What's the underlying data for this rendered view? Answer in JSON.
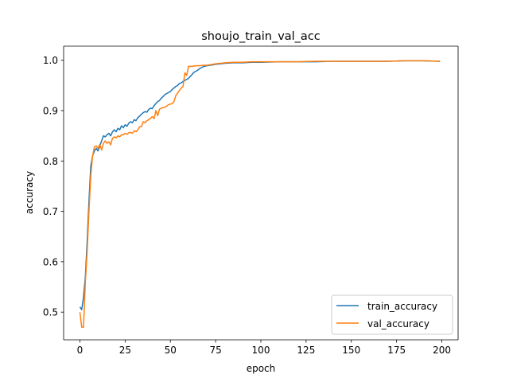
{
  "chart_data": {
    "type": "line",
    "title": "shoujo_train_val_acc",
    "xlabel": "epoch",
    "ylabel": "accuracy",
    "xlim": [
      -9,
      209
    ],
    "ylim": [
      0.445,
      1.028
    ],
    "xticks": [
      0,
      25,
      50,
      75,
      100,
      125,
      150,
      175,
      200
    ],
    "yticks": [
      0.5,
      0.6,
      0.7,
      0.8,
      0.9,
      1.0
    ],
    "ytick_labels": [
      "0.5",
      "0.6",
      "0.7",
      "0.8",
      "0.9",
      "1.0"
    ],
    "grid": false,
    "legend_position": "lower-right",
    "series": [
      {
        "name": "train_accuracy",
        "color": "#1f77b4",
        "points": [
          [
            0,
            0.51
          ],
          [
            1,
            0.505
          ],
          [
            2,
            0.53
          ],
          [
            3,
            0.57
          ],
          [
            4,
            0.64
          ],
          [
            5,
            0.72
          ],
          [
            6,
            0.79
          ],
          [
            7,
            0.81
          ],
          [
            8,
            0.82
          ],
          [
            9,
            0.825
          ],
          [
            10,
            0.82
          ],
          [
            11,
            0.83
          ],
          [
            12,
            0.84
          ],
          [
            13,
            0.85
          ],
          [
            14,
            0.848
          ],
          [
            15,
            0.852
          ],
          [
            16,
            0.855
          ],
          [
            17,
            0.85
          ],
          [
            18,
            0.858
          ],
          [
            19,
            0.862
          ],
          [
            20,
            0.858
          ],
          [
            21,
            0.865
          ],
          [
            22,
            0.862
          ],
          [
            23,
            0.87
          ],
          [
            24,
            0.866
          ],
          [
            25,
            0.872
          ],
          [
            26,
            0.869
          ],
          [
            27,
            0.875
          ],
          [
            28,
            0.878
          ],
          [
            29,
            0.876
          ],
          [
            30,
            0.882
          ],
          [
            31,
            0.88
          ],
          [
            32,
            0.886
          ],
          [
            33,
            0.889
          ],
          [
            34,
            0.893
          ],
          [
            35,
            0.896
          ],
          [
            36,
            0.898
          ],
          [
            37,
            0.897
          ],
          [
            38,
            0.902
          ],
          [
            39,
            0.905
          ],
          [
            40,
            0.904
          ],
          [
            41,
            0.91
          ],
          [
            42,
            0.914
          ],
          [
            43,
            0.918
          ],
          [
            44,
            0.92
          ],
          [
            45,
            0.925
          ],
          [
            46,
            0.928
          ],
          [
            47,
            0.932
          ],
          [
            48,
            0.934
          ],
          [
            49,
            0.936
          ],
          [
            50,
            0.938
          ],
          [
            51,
            0.942
          ],
          [
            52,
            0.945
          ],
          [
            53,
            0.948
          ],
          [
            54,
            0.95
          ],
          [
            55,
            0.954
          ],
          [
            56,
            0.955
          ],
          [
            57,
            0.958
          ],
          [
            58,
            0.96
          ],
          [
            59,
            0.962
          ],
          [
            60,
            0.964
          ],
          [
            61,
            0.968
          ],
          [
            62,
            0.972
          ],
          [
            63,
            0.976
          ],
          [
            64,
            0.978
          ],
          [
            65,
            0.98
          ],
          [
            66,
            0.983
          ],
          [
            67,
            0.985
          ],
          [
            68,
            0.987
          ],
          [
            69,
            0.988
          ],
          [
            70,
            0.989
          ],
          [
            72,
            0.99
          ],
          [
            75,
            0.992
          ],
          [
            78,
            0.993
          ],
          [
            80,
            0.994
          ],
          [
            85,
            0.995
          ],
          [
            90,
            0.995
          ],
          [
            95,
            0.996
          ],
          [
            100,
            0.996
          ],
          [
            110,
            0.997
          ],
          [
            120,
            0.997
          ],
          [
            130,
            0.997
          ],
          [
            140,
            0.998
          ],
          [
            150,
            0.998
          ],
          [
            160,
            0.998
          ],
          [
            170,
            0.998
          ],
          [
            180,
            0.999
          ],
          [
            190,
            0.999
          ],
          [
            199,
            0.998
          ]
        ]
      },
      {
        "name": "val_accuracy",
        "color": "#ff7f0e",
        "points": [
          [
            0,
            0.5
          ],
          [
            1,
            0.47
          ],
          [
            2,
            0.47
          ],
          [
            3,
            0.56
          ],
          [
            4,
            0.62
          ],
          [
            5,
            0.7
          ],
          [
            6,
            0.77
          ],
          [
            7,
            0.81
          ],
          [
            8,
            0.828
          ],
          [
            9,
            0.83
          ],
          [
            10,
            0.825
          ],
          [
            11,
            0.833
          ],
          [
            12,
            0.822
          ],
          [
            13,
            0.835
          ],
          [
            14,
            0.84
          ],
          [
            15,
            0.835
          ],
          [
            16,
            0.838
          ],
          [
            17,
            0.832
          ],
          [
            18,
            0.845
          ],
          [
            19,
            0.848
          ],
          [
            20,
            0.846
          ],
          [
            21,
            0.85
          ],
          [
            22,
            0.848
          ],
          [
            23,
            0.852
          ],
          [
            24,
            0.852
          ],
          [
            25,
            0.855
          ],
          [
            26,
            0.853
          ],
          [
            27,
            0.856
          ],
          [
            28,
            0.857
          ],
          [
            29,
            0.855
          ],
          [
            30,
            0.86
          ],
          [
            31,
            0.858
          ],
          [
            32,
            0.862
          ],
          [
            33,
            0.868
          ],
          [
            34,
            0.868
          ],
          [
            35,
            0.878
          ],
          [
            36,
            0.876
          ],
          [
            37,
            0.88
          ],
          [
            38,
            0.882
          ],
          [
            39,
            0.885
          ],
          [
            40,
            0.888
          ],
          [
            41,
            0.884
          ],
          [
            42,
            0.9
          ],
          [
            43,
            0.89
          ],
          [
            44,
            0.903
          ],
          [
            45,
            0.905
          ],
          [
            46,
            0.906
          ],
          [
            47,
            0.907
          ],
          [
            48,
            0.909
          ],
          [
            49,
            0.912
          ],
          [
            50,
            0.913
          ],
          [
            51,
            0.914
          ],
          [
            52,
            0.918
          ],
          [
            53,
            0.93
          ],
          [
            54,
            0.935
          ],
          [
            55,
            0.94
          ],
          [
            56,
            0.945
          ],
          [
            57,
            0.948
          ],
          [
            58,
            0.975
          ],
          [
            59,
            0.97
          ],
          [
            60,
            0.988
          ],
          [
            62,
            0.988
          ],
          [
            64,
            0.989
          ],
          [
            66,
            0.989
          ],
          [
            68,
            0.99
          ],
          [
            70,
            0.99
          ],
          [
            72,
            0.991
          ],
          [
            75,
            0.993
          ],
          [
            78,
            0.994
          ],
          [
            80,
            0.995
          ],
          [
            85,
            0.996
          ],
          [
            90,
            0.996
          ],
          [
            95,
            0.997
          ],
          [
            100,
            0.997
          ],
          [
            110,
            0.997
          ],
          [
            120,
            0.997
          ],
          [
            130,
            0.998
          ],
          [
            140,
            0.998
          ],
          [
            150,
            0.998
          ],
          [
            160,
            0.998
          ],
          [
            170,
            0.998
          ],
          [
            180,
            0.999
          ],
          [
            190,
            0.999
          ],
          [
            199,
            0.998
          ]
        ]
      }
    ]
  }
}
